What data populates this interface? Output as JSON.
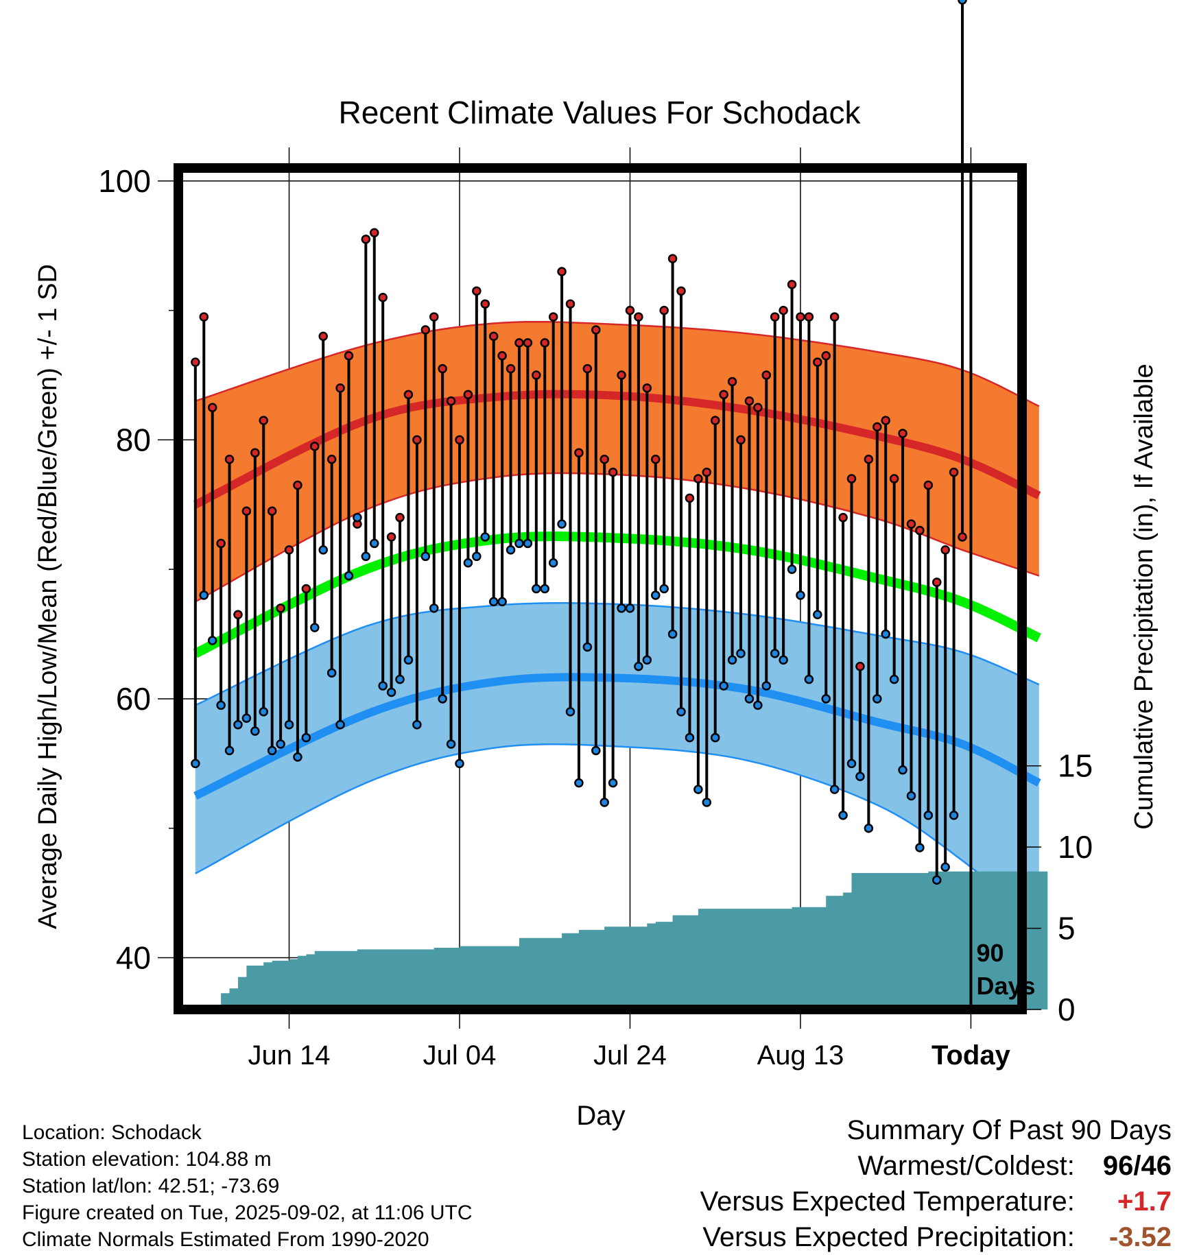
{
  "chart_data": {
    "type": "line",
    "title": "Recent Climate Values For Schodack",
    "xlabel": "Day",
    "ylabel": "Average Daily High/Low/Mean (Red/Blue/Green) +/- 1 SD",
    "ylabel_right": "Cumulative Precipitation (in), If Available",
    "xlim": [
      -2,
      97
    ],
    "ylim": [
      36,
      101
    ],
    "y_ticks": [
      40,
      60,
      80,
      100
    ],
    "y_right_ticks": [
      0,
      5,
      10,
      15
    ],
    "y_right_range": [
      0,
      51.8
    ],
    "x_ticks": [
      {
        "x": 11,
        "label": "Jun 14"
      },
      {
        "x": 31,
        "label": "Jul 04"
      },
      {
        "x": 51,
        "label": "Jul 24"
      },
      {
        "x": 71,
        "label": "Aug 13"
      },
      {
        "x": 91,
        "label": "Today"
      }
    ],
    "today_marker": {
      "x": 91,
      "label_line1": "90",
      "label_line2": "Days"
    },
    "normal_high": {
      "x": [
        0,
        20,
        35,
        50,
        65,
        80,
        90,
        99
      ],
      "mean": [
        75,
        81.5,
        83.3,
        83.4,
        82.3,
        80.3,
        78.5,
        75.7
      ],
      "upper": [
        83,
        87.3,
        89,
        88.9,
        88.2,
        86.8,
        85.4,
        82.6
      ],
      "lower": [
        67.5,
        74.6,
        77.1,
        77.3,
        76.2,
        73.9,
        71.5,
        69.5
      ]
    },
    "normal_low": {
      "x": [
        0,
        20,
        35,
        50,
        65,
        80,
        90,
        99
      ],
      "mean": [
        52.5,
        58.8,
        61.3,
        61.6,
        60.7,
        58.2,
        56.5,
        53.5
      ],
      "upper": [
        59.5,
        65.6,
        67.2,
        67.3,
        66.5,
        64.9,
        63.6,
        61.1
      ],
      "lower": [
        46.5,
        53.5,
        56.2,
        56.3,
        55.2,
        51.8,
        47.5,
        42.5
      ]
    },
    "normal_mean": {
      "x": [
        0,
        20,
        35,
        50,
        65,
        80,
        90,
        99
      ],
      "values": [
        63.5,
        70,
        72.3,
        72.4,
        71.5,
        69.3,
        67.5,
        64.7
      ]
    },
    "daily_highs": [
      86,
      89.5,
      82.5,
      72,
      78.5,
      66.5,
      74.5,
      79,
      81.5,
      74.5,
      67,
      71.5,
      76.5,
      68.5,
      79.5,
      88,
      78.5,
      84,
      86.5,
      73.5,
      95.5,
      96,
      91,
      72.5,
      74,
      83.5,
      80,
      88.5,
      89.5,
      85.5,
      83,
      80,
      83.5,
      91.5,
      90.5,
      88,
      86.5,
      85.5,
      87.5,
      87.5,
      85,
      87.5,
      89.5,
      93,
      90.5,
      79,
      85.5,
      88.5,
      78.5,
      77.5,
      85,
      90,
      89.5,
      84,
      78.5,
      90,
      94,
      91.5,
      75.5,
      77,
      77.5,
      81.5,
      83.5,
      84.5,
      80,
      83,
      82.5,
      85,
      89.5,
      90,
      92,
      89.5,
      89.5,
      86,
      86.5,
      89.5,
      74,
      77,
      62.5,
      78.5,
      81,
      81.5,
      77,
      80.5,
      73.5,
      73,
      76.5,
      69,
      71.5,
      77.5,
      72.5
    ],
    "daily_lows": [
      55,
      68,
      64.5,
      59.5,
      56,
      58,
      58.5,
      57.5,
      59,
      56,
      56.5,
      58,
      55.5,
      57,
      65.5,
      71.5,
      62,
      58,
      69.5,
      74,
      71,
      72,
      61,
      60.5,
      61.5,
      63,
      58,
      71,
      67,
      60,
      56.5,
      55,
      70.5,
      71,
      72.5,
      67.5,
      67.5,
      71.5,
      72,
      72,
      68.5,
      68.5,
      70.5,
      73.5,
      59,
      53.5,
      64,
      56,
      52,
      53.5,
      67,
      67,
      62.5,
      63,
      68,
      68.5,
      65,
      59,
      57,
      53,
      52,
      57,
      61,
      63,
      63.5,
      60,
      59.5,
      61,
      63.5,
      63,
      70,
      68,
      61.5,
      66.5,
      60,
      53,
      51,
      55,
      54,
      50,
      60,
      65,
      61.5,
      54.5,
      52.5,
      48.5,
      51,
      46,
      47,
      51
    ],
    "precip_cumulative": [
      0,
      0,
      0,
      1,
      1.3,
      2,
      2.7,
      2.7,
      2.9,
      3,
      3,
      3.1,
      3.3,
      3.4,
      3.6,
      3.6,
      3.6,
      3.6,
      3.6,
      3.7,
      3.7,
      3.7,
      3.7,
      3.7,
      3.7,
      3.7,
      3.7,
      3.7,
      3.8,
      3.8,
      3.8,
      3.9,
      3.9,
      3.9,
      3.9,
      3.9,
      3.9,
      3.9,
      4.4,
      4.4,
      4.4,
      4.4,
      4.4,
      4.7,
      4.7,
      4.9,
      4.9,
      4.9,
      5.1,
      5.1,
      5.1,
      5.1,
      5.1,
      5.3,
      5.4,
      5.4,
      5.8,
      5.8,
      5.8,
      6.2,
      6.2,
      6.2,
      6.2,
      6.2,
      6.2,
      6.2,
      6.2,
      6.2,
      6.2,
      6.2,
      6.3,
      6.3,
      6.3,
      6.3,
      7,
      7,
      7.2,
      8.4,
      8.4,
      8.4,
      8.4,
      8.4,
      8.4,
      8.4,
      8.4,
      8.4,
      8.5,
      8.5,
      8.5,
      8.5,
      8.5,
      8.5,
      8.5,
      8.5,
      8.5,
      8.5,
      8.5,
      8.5,
      8.5,
      8.5
    ],
    "colors": {
      "high": "#d62728",
      "high_band": "#f47a30",
      "low": "#1f8ff2",
      "low_band": "#85c2e8",
      "mean": "#00f000",
      "precip": "#4a9ba5",
      "marker_high": "#d62728",
      "marker_low": "#1f86e0"
    }
  },
  "location": "Location: Schodack",
  "elevation": "Station elevation: 104.88 m",
  "latlon": "Station lat/lon: 42.51; -73.69",
  "created": "Figure created on Tue, 2025-09-02, at 11:06 UTC",
  "normals": "Climate Normals Estimated From 1990-2020",
  "summary": {
    "title": "Summary Of Past 90 Days",
    "warmest_coldest_label": "Warmest/Coldest:",
    "warmest": "96",
    "slash": "/",
    "coldest": "46",
    "temp_label": "Versus Expected Temperature:",
    "temp_value": "+1.7",
    "temp_color": "#d62728",
    "precip_label": "Versus Expected Precipitation:",
    "precip_value": "-3.52",
    "precip_color": "#a0522d"
  }
}
